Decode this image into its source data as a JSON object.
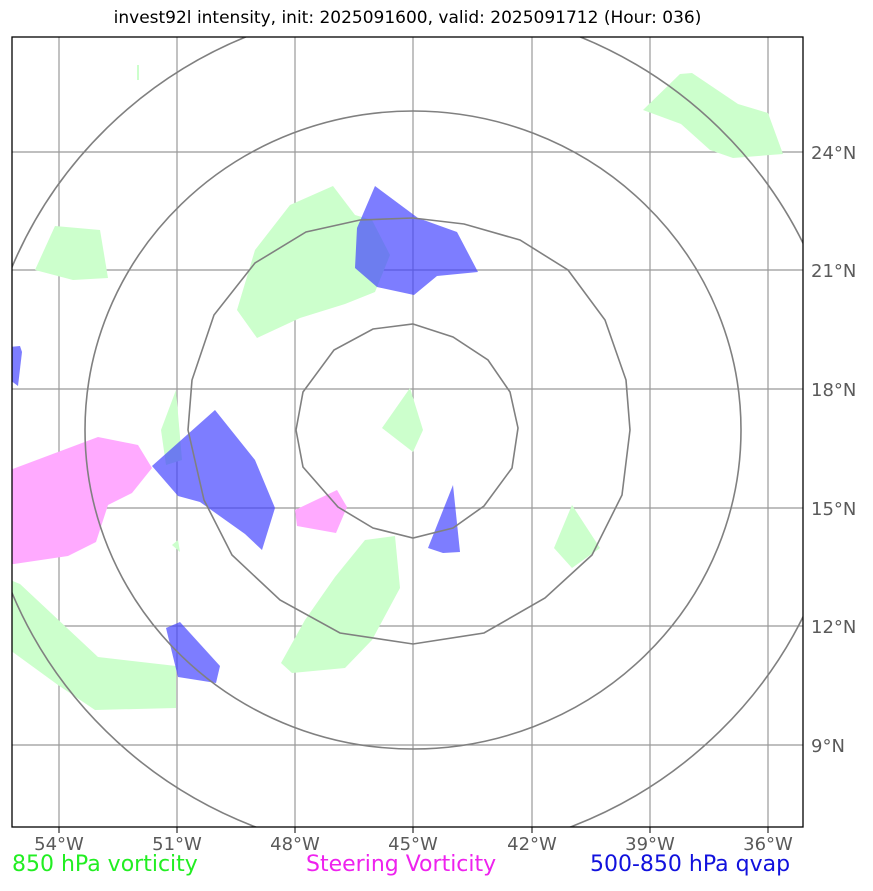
{
  "title": "invest92l intensity, init: 2025091600, valid: 2025091712 (Hour: 036)",
  "lon_labels": [
    "54°W",
    "51°W",
    "48°W",
    "45°W",
    "42°W",
    "39°W",
    "36°W"
  ],
  "lat_labels": [
    "24°N",
    "21°N",
    "18°N",
    "15°N",
    "12°N",
    "9°N"
  ],
  "legend": {
    "green": "850 hPa vorticity",
    "magenta": "Steering Vorticity",
    "blue": "500-850 hPa qvap"
  },
  "colors": {
    "green_text": "#22ee22",
    "magenta_text": "#ee22ee",
    "blue_text": "#1111dd",
    "green_fill": "#ccffcc",
    "magenta_fill": "#ffaaff",
    "blue_fill": "#4040ff",
    "grid": "#999999",
    "rings": "#808080"
  }
}
